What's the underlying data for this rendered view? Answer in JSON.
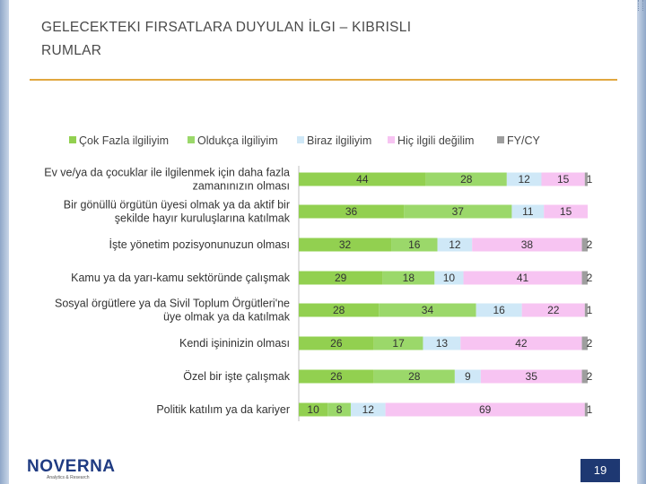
{
  "slide": {
    "title_lines": [
      "GELECEKTEKI FIRSATLARA DUYULAN İLGI – KIBRISLI",
      "RUMLAR"
    ],
    "page_number": "19"
  },
  "logo": {
    "name": "NOVERNA",
    "subtitle": "Analytics & Research"
  },
  "colors": {
    "cok_fazla": "#92d050",
    "oldukca": "#9bd86a",
    "biraz": "#cfe8f7",
    "hic": "#f7c4f2",
    "fycy": "#9e9e9e",
    "accent_rule": "#e1a73f",
    "page_box": "#1e3872"
  },
  "chart_data": {
    "type": "bar",
    "orientation": "horizontal",
    "stacked": true,
    "percent": true,
    "title": "",
    "xlabel": "",
    "ylabel": "",
    "xlim": [
      0,
      100
    ],
    "grid": false,
    "legend_position": "top",
    "categories": [
      "Ev ve/ya da çocuklar ile ilgilenmek için daha fazla zamanınızın olması",
      "Bir gönüllü örgütün üyesi olmak ya da aktif bir şekilde hayır kuruluşlarına katılmak",
      "İşte yönetim pozisyonunuzun olması",
      "Kamu ya da yarı-kamu sektöründe çalışmak",
      "Sosyal örgütlere ya da Sivil Toplum Örgütleri'ne üye olmak ya da katılmak",
      "Kendi işininizin olması",
      "Özel bir işte çalışmak",
      "Politik katılım ya da kariyer"
    ],
    "category_lines": [
      [
        "Ev ve/ya da çocuklar ile ilgilenmek için daha fazla",
        "zamanınızın olması"
      ],
      [
        "Bir gönüllü örgütün üyesi olmak ya da aktif bir",
        "şekilde hayır kuruluşlarına katılmak"
      ],
      [
        "İşte yönetim pozisyonunuzun olması"
      ],
      [
        "Kamu ya da yarı-kamu sektöründe çalışmak"
      ],
      [
        "Sosyal örgütlere ya da Sivil Toplum Örgütleri'ne",
        "üye olmak ya da katılmak"
      ],
      [
        "Kendi işininizin olması"
      ],
      [
        "Özel bir işte çalışmak"
      ],
      [
        "Politik katılım ya da kariyer"
      ]
    ],
    "series": [
      {
        "name": "Çok Fazla ilgiliyim",
        "color": "#92d050",
        "values": [
          44,
          36,
          32,
          29,
          28,
          26,
          26,
          10
        ]
      },
      {
        "name": "Oldukça ilgiliyim",
        "color": "#9bd86a",
        "values": [
          28,
          37,
          16,
          18,
          34,
          17,
          28,
          8
        ]
      },
      {
        "name": "Biraz ilgiliyim",
        "color": "#cfe8f7",
        "values": [
          12,
          11,
          12,
          10,
          16,
          13,
          9,
          12
        ]
      },
      {
        "name": "Hiç ilgili değilim",
        "color": "#f7c4f2",
        "values": [
          15,
          15,
          38,
          41,
          22,
          42,
          35,
          69
        ]
      },
      {
        "name": "FY/CY",
        "color": "#9e9e9e",
        "values": [
          1,
          0,
          2,
          2,
          1,
          2,
          2,
          1
        ]
      }
    ]
  }
}
